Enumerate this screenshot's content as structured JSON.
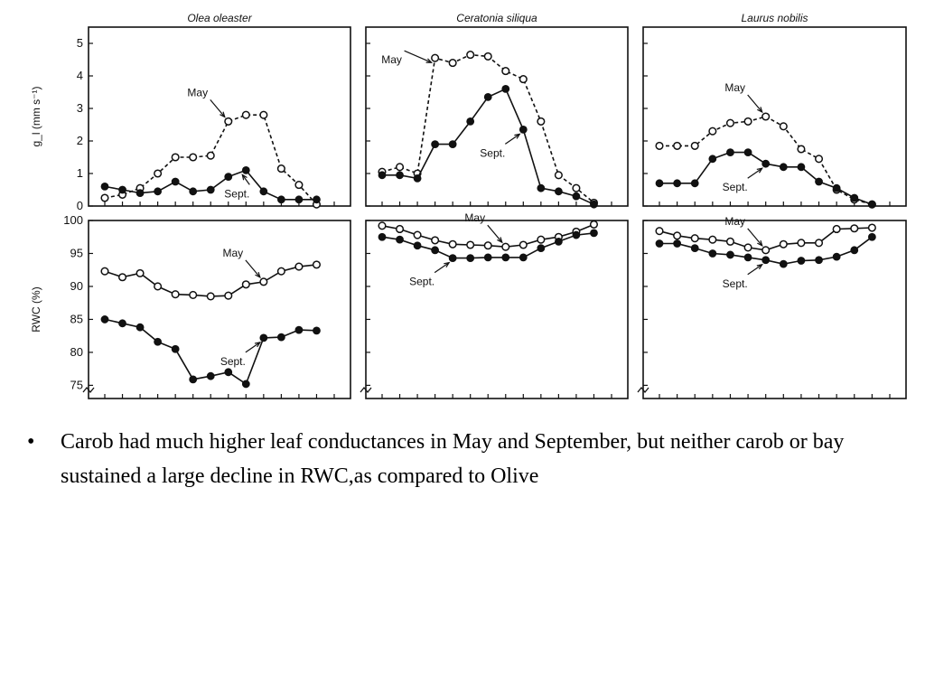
{
  "bullet": {
    "symbol": "•",
    "text": "Carob had much higher leaf conductances in May and September, but  neither carob or bay sustained a large decline in RWC,as compared to Olive"
  },
  "chart_data": {
    "type": "line",
    "title": "",
    "rows": {
      "top": {
        "ylabel": "g_l (mm s⁻¹)",
        "ylim": [
          0,
          5.5
        ],
        "yticks": [
          0,
          1,
          2,
          3,
          4,
          5
        ]
      },
      "bottom": {
        "ylabel": "RWC (%)",
        "ylim": [
          73,
          100
        ],
        "yticks": [
          75,
          80,
          85,
          90,
          95,
          100
        ]
      }
    },
    "x": [
      1,
      2,
      3,
      4,
      5,
      6,
      7,
      8,
      9,
      10,
      11,
      12,
      13,
      14
    ],
    "panels": [
      {
        "row": "top",
        "col": 0,
        "species": "Olea oleaster",
        "series": [
          {
            "name": "May",
            "marker": "open",
            "dashed": true,
            "x": [
              1,
              2,
              3,
              4,
              5,
              6,
              7,
              8,
              9,
              10,
              11,
              12,
              13
            ],
            "values": [
              0.25,
              0.35,
              0.55,
              1.0,
              1.5,
              1.5,
              1.55,
              2.6,
              2.8,
              2.8,
              1.15,
              0.65,
              0.05
            ]
          },
          {
            "name": "Sept.",
            "marker": "filled",
            "dashed": false,
            "x": [
              1,
              2,
              3,
              4,
              5,
              6,
              7,
              8,
              9,
              10,
              11,
              12,
              13
            ],
            "values": [
              0.6,
              0.5,
              0.4,
              0.45,
              0.75,
              0.45,
              0.5,
              0.9,
              1.1,
              0.45,
              0.2,
              0.2,
              0.2
            ]
          }
        ],
        "annotations": [
          {
            "text": "May",
            "series": "May",
            "x": 8
          },
          {
            "text": "Sept.",
            "series": "Sept.",
            "x": 9
          }
        ]
      },
      {
        "row": "top",
        "col": 1,
        "species": "Ceratonia siliqua",
        "series": [
          {
            "name": "May",
            "marker": "open",
            "dashed": true,
            "x": [
              1,
              2,
              3,
              4,
              5,
              6,
              7,
              8,
              9,
              10,
              11,
              12,
              13,
              14
            ],
            "values": [
              1.05,
              1.2,
              1.0,
              4.55,
              4.4,
              4.65,
              4.6,
              4.15,
              3.9,
              2.6,
              0.95,
              0.55,
              0.1,
              null
            ]
          },
          {
            "name": "Sept.",
            "marker": "filled",
            "dashed": false,
            "x": [
              1,
              2,
              3,
              4,
              5,
              6,
              7,
              8,
              9,
              10,
              11,
              12,
              13,
              14
            ],
            "values": [
              0.95,
              0.95,
              0.85,
              1.9,
              1.9,
              2.6,
              3.35,
              3.6,
              2.35,
              0.55,
              0.45,
              0.3,
              0.05,
              null
            ]
          }
        ],
        "annotations": [
          {
            "text": "May",
            "series": "May",
            "x": 4
          },
          {
            "text": "Sept.",
            "series": "Sept.",
            "x": 9
          }
        ]
      },
      {
        "row": "top",
        "col": 2,
        "species": "Laurus nobilis",
        "series": [
          {
            "name": "May",
            "marker": "open",
            "dashed": true,
            "x": [
              1,
              2,
              3,
              4,
              5,
              6,
              7,
              8,
              9,
              10,
              11,
              12,
              13,
              14
            ],
            "values": [
              1.85,
              1.85,
              1.85,
              2.3,
              2.55,
              2.6,
              2.75,
              2.45,
              1.75,
              1.45,
              0.5,
              0.2,
              0.05,
              null
            ]
          },
          {
            "name": "Sept.",
            "marker": "filled",
            "dashed": false,
            "x": [
              1,
              2,
              3,
              4,
              5,
              6,
              7,
              8,
              9,
              10,
              11,
              12,
              13,
              14
            ],
            "values": [
              0.7,
              0.7,
              0.7,
              1.45,
              1.65,
              1.65,
              1.3,
              1.2,
              1.2,
              0.75,
              0.55,
              0.25,
              0.05,
              null
            ]
          }
        ],
        "annotations": [
          {
            "text": "May",
            "series": "May",
            "x": 7
          },
          {
            "text": "Sept.",
            "series": "Sept.",
            "x": 7
          }
        ]
      },
      {
        "row": "bottom",
        "col": 0,
        "species": "Olea oleaster",
        "series": [
          {
            "name": "May",
            "marker": "open",
            "dashed": false,
            "x": [
              1,
              2,
              3,
              4,
              5,
              6,
              7,
              8,
              9,
              10,
              11,
              12,
              13
            ],
            "values": [
              92.3,
              91.4,
              92.0,
              90.0,
              88.8,
              88.7,
              88.5,
              88.6,
              90.3,
              90.7,
              92.3,
              93.0,
              93.3
            ]
          },
          {
            "name": "Sept.",
            "marker": "filled",
            "dashed": false,
            "x": [
              1,
              2,
              3,
              4,
              5,
              6,
              7,
              8,
              9,
              10,
              11,
              12,
              13
            ],
            "values": [
              85.0,
              84.4,
              83.8,
              81.6,
              80.5,
              75.9,
              76.4,
              77.0,
              75.2,
              82.2,
              82.3,
              83.4,
              83.3
            ]
          }
        ],
        "annotations": [
          {
            "text": "May",
            "series": "May",
            "x": 10
          },
          {
            "text": "Sept.",
            "series": "Sept.",
            "x": 10
          }
        ]
      },
      {
        "row": "bottom",
        "col": 1,
        "species": "Ceratonia siliqua",
        "series": [
          {
            "name": "May",
            "marker": "open",
            "dashed": false,
            "x": [
              1,
              2,
              3,
              4,
              5,
              6,
              7,
              8,
              9,
              10,
              11,
              12,
              13,
              14
            ],
            "values": [
              99.2,
              98.7,
              97.8,
              97.0,
              96.4,
              96.3,
              96.2,
              96.0,
              96.3,
              97.1,
              97.5,
              98.3,
              99.4,
              null
            ]
          },
          {
            "name": "Sept.",
            "marker": "filled",
            "dashed": false,
            "x": [
              1,
              2,
              3,
              4,
              5,
              6,
              7,
              8,
              9,
              10,
              11,
              12,
              13,
              14
            ],
            "values": [
              97.5,
              97.1,
              96.2,
              95.5,
              94.3,
              94.3,
              94.4,
              94.4,
              94.4,
              95.8,
              96.8,
              97.8,
              98.1,
              null
            ]
          }
        ],
        "annotations": [
          {
            "text": "May",
            "series": "May",
            "x": 8
          },
          {
            "text": "Sept.",
            "series": "Sept.",
            "x": 5
          }
        ]
      },
      {
        "row": "bottom",
        "col": 2,
        "species": "Laurus nobilis",
        "series": [
          {
            "name": "May",
            "marker": "open",
            "dashed": false,
            "x": [
              1,
              2,
              3,
              4,
              5,
              6,
              7,
              8,
              9,
              10,
              11,
              12,
              13,
              14
            ],
            "values": [
              98.4,
              97.7,
              97.3,
              97.1,
              96.8,
              95.9,
              95.5,
              96.4,
              96.6,
              96.6,
              98.7,
              98.8,
              98.9,
              null
            ]
          },
          {
            "name": "Sept.",
            "marker": "filled",
            "dashed": false,
            "x": [
              1,
              2,
              3,
              4,
              5,
              6,
              7,
              8,
              9,
              10,
              11,
              12,
              13,
              14
            ],
            "values": [
              96.5,
              96.5,
              95.8,
              95.0,
              94.8,
              94.4,
              94.0,
              93.4,
              93.9,
              94.0,
              94.5,
              95.5,
              97.5,
              null
            ]
          }
        ],
        "annotations": [
          {
            "text": "May",
            "series": "May",
            "x": 7
          },
          {
            "text": "Sept.",
            "series": "Sept.",
            "x": 7
          }
        ]
      }
    ]
  }
}
